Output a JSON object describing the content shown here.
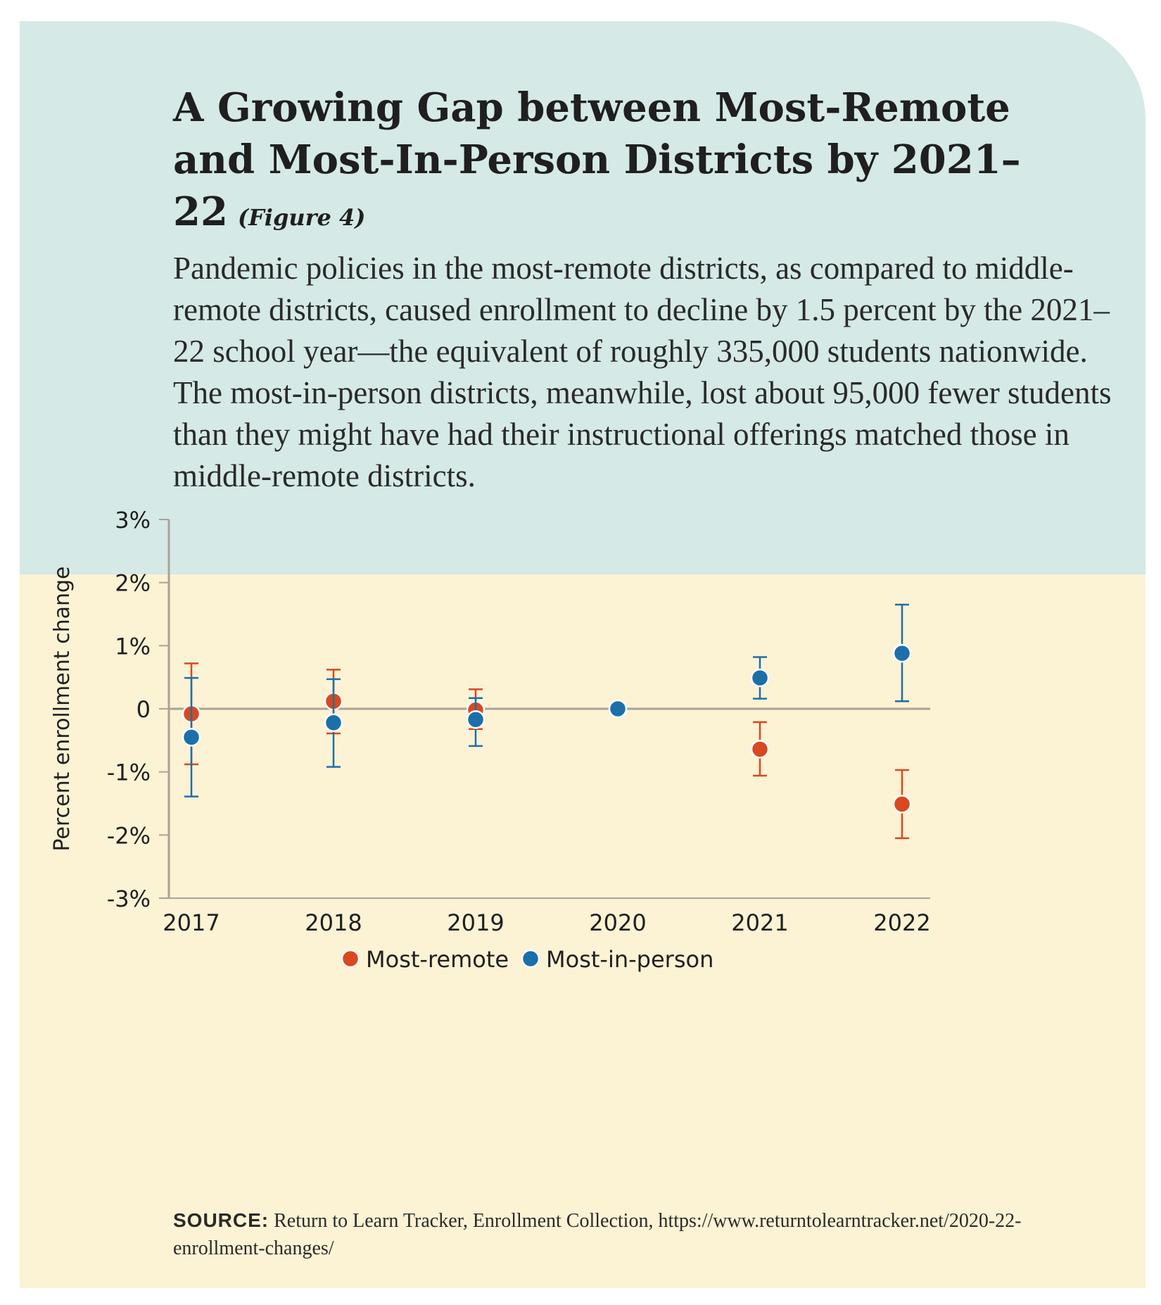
{
  "title_main": "A Growing Gap between Most-Remote and Most-In-Person Districts by 2021–22",
  "title_figure": "(Figure 4)",
  "description": "Pandemic policies in the most-remote districts, as compared to middle-remote districts, caused enrollment to decline by 1.5 percent by the 2021–22 school year—the equivalent of roughly 335,000 students nationwide. The most-in-person districts, meanwhile, lost about 95,000 fewer students than they might have had their instructional offerings matched those in middle-remote districts.",
  "source_label": "SOURCE:",
  "source_text": "Return to Learn Tracker, Enrollment Collection, https://www.returntolearntracker.net/2020-22-enrollment-changes/",
  "chart_data": {
    "type": "scatter",
    "ylabel": "Percent enrollment change",
    "ylim": [
      -3,
      3
    ],
    "yticks": [
      3,
      2,
      1,
      0,
      -1,
      -2,
      -3
    ],
    "ytick_labels": [
      "3%",
      "2%",
      "1%",
      "0",
      "-1%",
      "-2%",
      "-3%"
    ],
    "x": [
      "2017",
      "2018",
      "2019",
      "2020",
      "2021",
      "2022"
    ],
    "zero_line": true,
    "legend_position": "bottom",
    "series": [
      {
        "name": "Most-remote",
        "color": "#d9481f",
        "values": [
          -0.08,
          0.12,
          -0.02,
          0,
          -0.64,
          -1.51
        ],
        "lower": [
          -0.88,
          -0.39,
          -0.32,
          0,
          -1.06,
          -2.05
        ],
        "upper": [
          0.72,
          0.62,
          0.31,
          0,
          -0.21,
          -0.97
        ]
      },
      {
        "name": "Most-in-person",
        "color": "#1c6fa8",
        "values": [
          -0.45,
          -0.22,
          -0.17,
          0,
          0.49,
          0.88
        ],
        "lower": [
          -1.39,
          -0.92,
          -0.59,
          0,
          0.16,
          0.12
        ],
        "upper": [
          0.49,
          0.47,
          0.17,
          0,
          0.82,
          1.65
        ]
      }
    ]
  }
}
